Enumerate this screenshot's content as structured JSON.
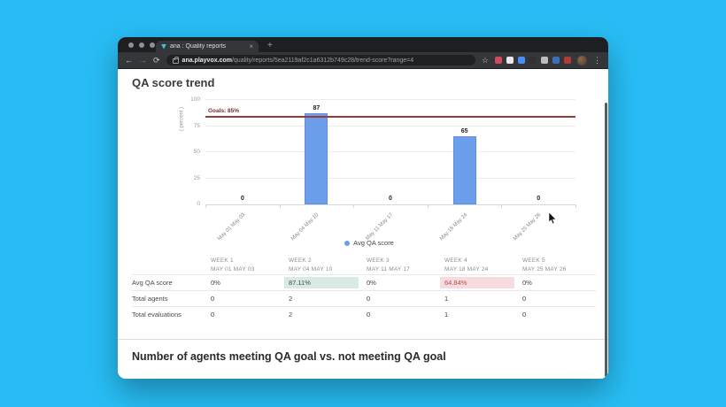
{
  "browser": {
    "tab_title": "ana : Quality reports",
    "url_domain": "ana.playvox.com",
    "url_path": "/quality/reports/5ea2119af2c1a6312b749c28/trend-score?range=4"
  },
  "icons": {
    "back": "←",
    "forward": "→",
    "reload": "⟳",
    "bookmark_star": "☆",
    "menu": "⋮",
    "close_tab": "×",
    "new_tab": "+"
  },
  "extensions": [
    {
      "name": "extension-icon-1",
      "color": "#d14b5e"
    },
    {
      "name": "extension-icon-2",
      "color": "#e8e8e8"
    },
    {
      "name": "extension-icon-3",
      "color": "#4b8df8"
    },
    {
      "name": "extension-icon-4",
      "color": "#2f3134"
    },
    {
      "name": "extension-icon-5",
      "color": "#bdbdbd"
    },
    {
      "name": "extension-icon-6",
      "color": "#3f6fb5"
    },
    {
      "name": "extension-icon-7",
      "color": "#b33a3a"
    }
  ],
  "page": {
    "title": "QA score trend",
    "section2_title": "Number of agents meeting QA goal vs. not meeting QA goal"
  },
  "chart_data": {
    "type": "bar",
    "title": "QA score trend",
    "ylabel": "( percent )",
    "ylim": [
      0,
      100
    ],
    "yticks": [
      0,
      25,
      50,
      75,
      100
    ],
    "categories": [
      "May 01 May 03",
      "May 04 May 10",
      "May 11 May 17",
      "May 18 May 24",
      "May 25 May 26"
    ],
    "series": [
      {
        "name": "Avg QA score",
        "values": [
          0,
          87,
          0,
          65,
          0
        ]
      }
    ],
    "goal": {
      "label": "Goals: 85%",
      "value": 85
    },
    "legend_position": "bottom",
    "grid": true,
    "bar_color": "#6d9eeb",
    "goal_color": "#9c3a3a"
  },
  "table": {
    "columns": [
      {
        "week": "WEEK 1",
        "dates": "MAY 01 MAY 03"
      },
      {
        "week": "WEEK 2",
        "dates": "MAY 04 MAY 10"
      },
      {
        "week": "WEEK 3",
        "dates": "MAY 11 MAY 17"
      },
      {
        "week": "WEEK 4",
        "dates": "MAY 18 MAY 24"
      },
      {
        "week": "WEEK 5",
        "dates": "MAY 25 MAY 26"
      }
    ],
    "rows": [
      {
        "label": "Avg QA score",
        "values": [
          "0%",
          "87.11%",
          "0%",
          "64.84%",
          "0%"
        ],
        "highlights": [
          null,
          "green",
          null,
          "red",
          null
        ]
      },
      {
        "label": "Total agents",
        "values": [
          "0",
          "2",
          "0",
          "1",
          "0"
        ],
        "highlights": [
          null,
          null,
          null,
          null,
          null
        ]
      },
      {
        "label": "Total evaluations",
        "values": [
          "0",
          "2",
          "0",
          "1",
          "0"
        ],
        "highlights": [
          null,
          null,
          null,
          null,
          null
        ]
      }
    ]
  },
  "colors": {
    "background": "#27bdf4",
    "bar": "#6d9eeb",
    "goal_line": "#9c3a3a",
    "highlight_green_bg": "#d9eae4",
    "highlight_red_bg": "#f6dcde",
    "highlight_red_text": "#b0504c"
  }
}
